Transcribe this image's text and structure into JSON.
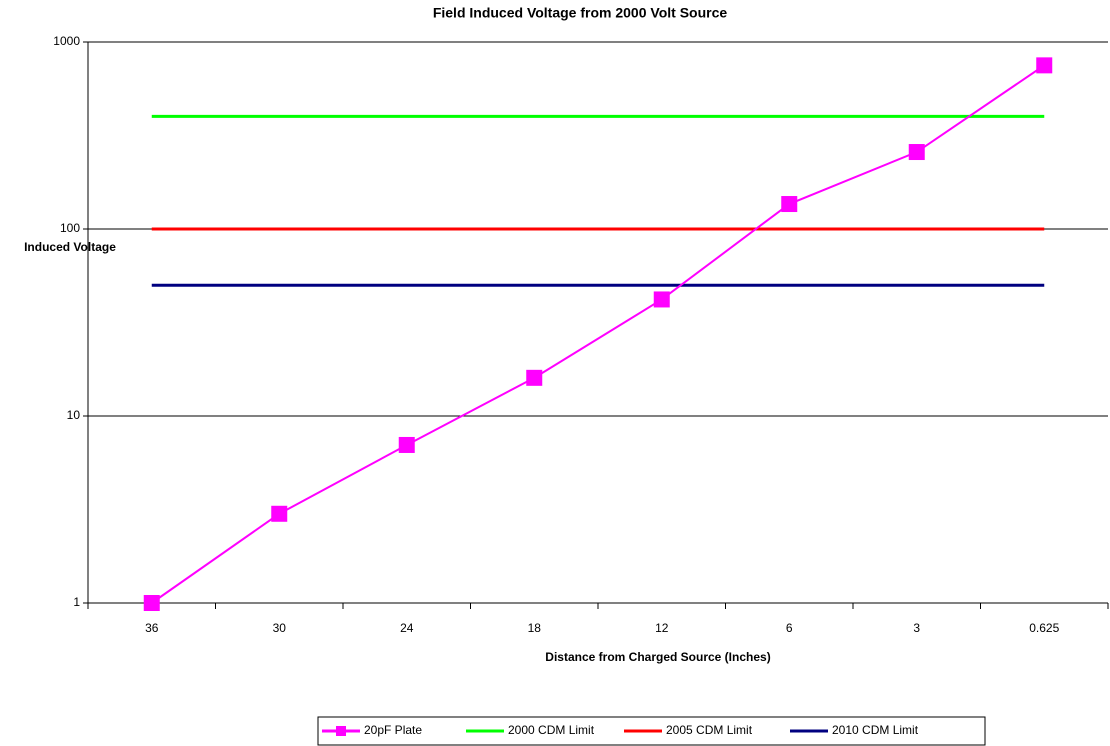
{
  "chart_data": {
    "type": "line",
    "title": "Field Induced Voltage from 2000 Volt Source",
    "x_label": "Distance from Charged Source (Inches)",
    "y_label": "Induced Voltage",
    "categories": [
      "36",
      "30",
      "24",
      "18",
      "12",
      "6",
      "3",
      "0.625"
    ],
    "series": [
      {
        "name": "20pF Plate",
        "color": "#ff00ff",
        "marker": "square",
        "values": [
          1,
          3,
          7,
          16,
          42,
          136,
          258,
          750
        ]
      },
      {
        "name": "2000 CDM Limit",
        "color": "#00ff00",
        "values": [
          400,
          400,
          400,
          400,
          400,
          400,
          400,
          400
        ]
      },
      {
        "name": "2005 CDM Limit",
        "color": "#ff0000",
        "values": [
          100,
          100,
          100,
          100,
          100,
          100,
          100,
          100
        ]
      },
      {
        "name": "2010 CDM Limit",
        "color": "#000080",
        "values": [
          50,
          50,
          50,
          50,
          50,
          50,
          50,
          50
        ]
      }
    ],
    "ylim": [
      1,
      1000
    ],
    "yticks": [
      1,
      10,
      100,
      1000
    ],
    "log_y": true,
    "grid": true,
    "legend": "bottom"
  }
}
